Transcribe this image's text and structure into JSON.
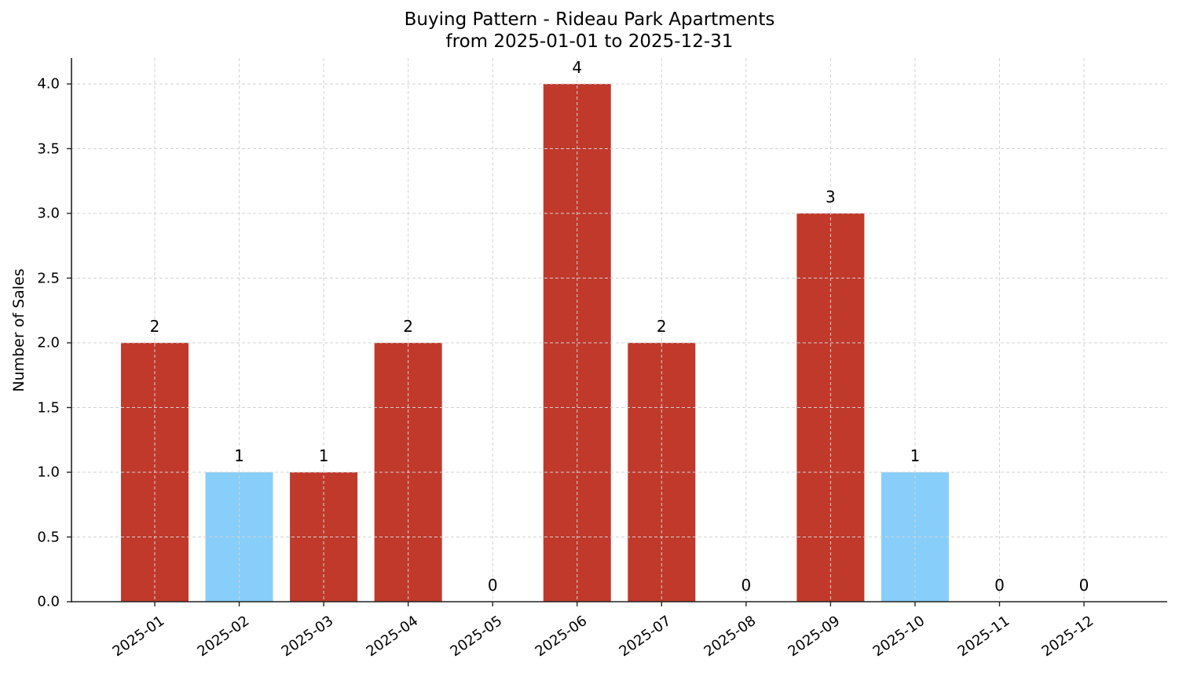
{
  "chart_data": {
    "type": "bar",
    "title": "Buying Pattern - Rideau Park Apartments",
    "subtitle": "from 2025-01-01 to 2025-12-31",
    "xlabel": "",
    "ylabel": "Number of Sales",
    "categories": [
      "2025-01",
      "2025-02",
      "2025-03",
      "2025-04",
      "2025-05",
      "2025-06",
      "2025-07",
      "2025-08",
      "2025-09",
      "2025-10",
      "2025-11",
      "2025-12"
    ],
    "values": [
      2,
      1,
      1,
      2,
      0,
      4,
      2,
      0,
      3,
      1,
      0,
      0
    ],
    "bar_colors": [
      "#C0392B",
      "#87CEFA",
      "#C0392B",
      "#C0392B",
      "#C0392B",
      "#C0392B",
      "#C0392B",
      "#C0392B",
      "#C0392B",
      "#87CEFA",
      "#C0392B",
      "#C0392B"
    ],
    "data_labels": [
      "2",
      "1",
      "1",
      "2",
      "0",
      "4",
      "2",
      "0",
      "3",
      "1",
      "0",
      "0"
    ],
    "yticks": [
      "0.0",
      "0.5",
      "1.0",
      "1.5",
      "2.0",
      "2.5",
      "3.0",
      "3.5",
      "4.0"
    ],
    "ylim": [
      0,
      4.2
    ],
    "grid": true,
    "legend": null
  },
  "colors": {
    "primary_bar": "#C0392B",
    "highlight_bar": "#87CEFA",
    "grid": "#d3d3d3",
    "axis": "#222222"
  }
}
